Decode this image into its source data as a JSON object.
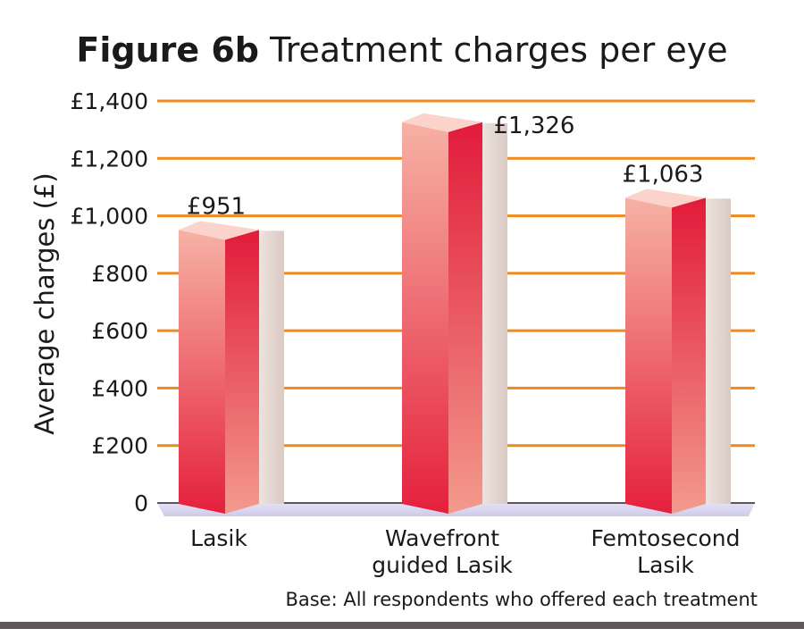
{
  "chart_data": {
    "type": "bar",
    "title_prefix": "Figure 6b",
    "title_text": "Treatment charges per eye",
    "ylabel": "Average charges (£)",
    "xlabel": "",
    "categories": [
      [
        "Lasik"
      ],
      [
        "Wavefront",
        "guided Lasik"
      ],
      [
        "Femtosecond",
        "Lasik"
      ]
    ],
    "values": [
      951,
      1326,
      1063
    ],
    "value_labels": [
      "£951",
      "£1,326",
      "£1,063"
    ],
    "ylim": [
      0,
      1400
    ],
    "yticks": [
      {
        "value": 0,
        "label": "0"
      },
      {
        "value": 200,
        "label": "£200"
      },
      {
        "value": 400,
        "label": "£400"
      },
      {
        "value": 600,
        "label": "£600"
      },
      {
        "value": 800,
        "label": "£800"
      },
      {
        "value": 1000,
        "label": "£1,000"
      },
      {
        "value": 1200,
        "label": "£1,200"
      },
      {
        "value": 1400,
        "label": "£1,400"
      }
    ],
    "grid": true,
    "note": "Base: All respondents who offered each treatment",
    "colors": {
      "grid": "#ee8a1e",
      "bar_light": "#f5a99a",
      "bar_dark": "#e11b3a",
      "bar_top": "#fbd3cb",
      "shadow": "#e6dad5",
      "floor": "#d7d4ef",
      "baseline": "#5d5656"
    }
  }
}
